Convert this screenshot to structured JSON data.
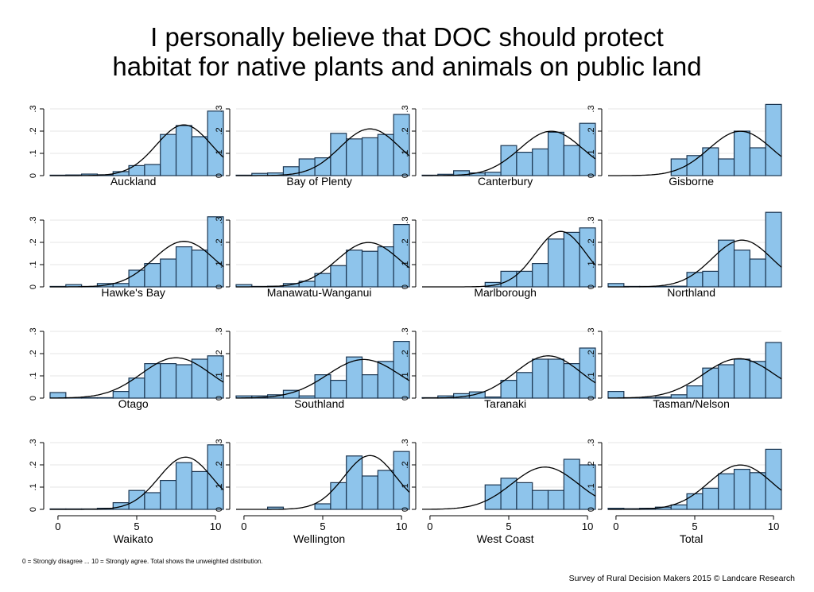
{
  "title_lines": [
    "I personally believe that DOC should protect",
    "habitat for native plants and animals on public land"
  ],
  "footnote": "0 = Strongly disagree ... 10 = Strongly agree. Total shows the unweighted distribution.",
  "credit": "Survey of Rural Decision Makers 2015 © Landcare Research",
  "colors": {
    "bar_fill": "#8ec4eb",
    "bar_stroke": "#1b3550",
    "curve": "#000000",
    "grid": "#e6e6e6",
    "axis": "#000000"
  },
  "chart_data": {
    "type": "bar",
    "subtype": "histogram-grid",
    "bins": [
      0,
      1,
      2,
      3,
      4,
      5,
      6,
      7,
      8,
      9,
      10
    ],
    "x_ticks": [
      0,
      5,
      10
    ],
    "y_ticks": [
      0,
      0.1,
      0.2,
      0.3
    ],
    "y_tick_labels": [
      "0",
      ".1",
      ".2",
      ".3"
    ],
    "ylim": [
      0,
      0.35
    ],
    "xlim": [
      -0.5,
      10.5
    ],
    "overlay": "normal density curve",
    "panels": [
      {
        "name": "Auckland",
        "values": [
          0.002,
          0.003,
          0.007,
          0.004,
          0.018,
          0.045,
          0.05,
          0.185,
          0.225,
          0.175,
          0.29
        ],
        "mean": 8.0,
        "sd": 1.75
      },
      {
        "name": "Bay of Plenty",
        "values": [
          0.002,
          0.01,
          0.012,
          0.04,
          0.075,
          0.08,
          0.19,
          0.165,
          0.17,
          0.185,
          0.275
        ],
        "mean": 8.0,
        "sd": 1.9
      },
      {
        "name": "Canterbury",
        "values": [
          0.002,
          0.006,
          0.022,
          0.012,
          0.015,
          0.135,
          0.105,
          0.12,
          0.195,
          0.135,
          0.235
        ],
        "mean": 7.7,
        "sd": 2.0
      },
      {
        "name": "Gisborne",
        "values": [
          0.0,
          0.0,
          0.0,
          0.0,
          0.075,
          0.09,
          0.125,
          0.075,
          0.2,
          0.125,
          0.32
        ],
        "mean": 7.9,
        "sd": 2.0
      },
      {
        "name": "Hawke's Bay",
        "values": [
          0.002,
          0.01,
          0.002,
          0.015,
          0.015,
          0.075,
          0.105,
          0.125,
          0.18,
          0.165,
          0.315
        ],
        "mean": 8.0,
        "sd": 1.95
      },
      {
        "name": "Manawatu-Wanganui",
        "values": [
          0.01,
          0.002,
          0.003,
          0.015,
          0.025,
          0.06,
          0.095,
          0.165,
          0.16,
          0.18,
          0.28
        ],
        "mean": 7.9,
        "sd": 2.0
      },
      {
        "name": "Marlborough",
        "values": [
          0.0,
          0.0,
          0.0,
          0.0,
          0.02,
          0.07,
          0.07,
          0.105,
          0.215,
          0.245,
          0.265
        ],
        "mean": 8.3,
        "sd": 1.6
      },
      {
        "name": "Northland",
        "values": [
          0.015,
          0.002,
          0.002,
          0.002,
          0.003,
          0.065,
          0.07,
          0.21,
          0.165,
          0.125,
          0.335
        ],
        "mean": 8.0,
        "sd": 1.9
      },
      {
        "name": "Otago",
        "values": [
          0.025,
          0.002,
          0.002,
          0.002,
          0.03,
          0.09,
          0.155,
          0.155,
          0.15,
          0.175,
          0.19
        ],
        "mean": 7.5,
        "sd": 2.2
      },
      {
        "name": "Southland",
        "values": [
          0.01,
          0.01,
          0.015,
          0.035,
          0.01,
          0.105,
          0.08,
          0.185,
          0.105,
          0.165,
          0.255
        ],
        "mean": 7.6,
        "sd": 2.3
      },
      {
        "name": "Taranaki",
        "values": [
          0.002,
          0.01,
          0.02,
          0.028,
          0.005,
          0.08,
          0.115,
          0.175,
          0.175,
          0.155,
          0.225
        ],
        "mean": 7.5,
        "sd": 2.1
      },
      {
        "name": "Tasman/Nelson",
        "values": [
          0.03,
          0.002,
          0.002,
          0.005,
          0.015,
          0.055,
          0.135,
          0.15,
          0.175,
          0.165,
          0.25
        ],
        "mean": 7.8,
        "sd": 2.25
      },
      {
        "name": "Waikato",
        "values": [
          0.002,
          0.002,
          0.002,
          0.005,
          0.03,
          0.085,
          0.075,
          0.13,
          0.21,
          0.17,
          0.29
        ],
        "mean": 8.1,
        "sd": 1.7
      },
      {
        "name": "Wellington",
        "values": [
          0.0,
          0.0,
          0.01,
          0.0,
          0.0,
          0.025,
          0.12,
          0.24,
          0.15,
          0.175,
          0.26
        ],
        "mean": 8.0,
        "sd": 1.65
      },
      {
        "name": "West Coast",
        "values": [
          0.0,
          0.0,
          0.0,
          0.0,
          0.11,
          0.14,
          0.12,
          0.085,
          0.085,
          0.225,
          0.2
        ],
        "mean": 7.3,
        "sd": 2.1
      },
      {
        "name": "Total",
        "values": [
          0.005,
          0.003,
          0.005,
          0.01,
          0.02,
          0.07,
          0.095,
          0.16,
          0.18,
          0.165,
          0.27
        ],
        "mean": 7.9,
        "sd": 2.0
      }
    ]
  }
}
